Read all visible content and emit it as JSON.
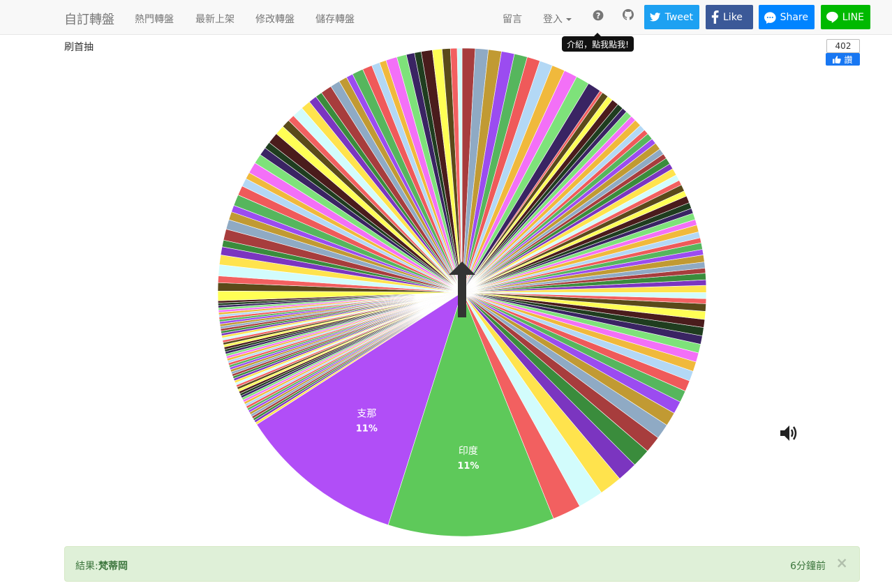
{
  "navbar": {
    "brand": "自訂轉盤",
    "links": [
      "熱門轉盤",
      "最新上架",
      "修改轉盤",
      "儲存轉盤"
    ],
    "message": "留言",
    "login": "登入",
    "help_icon": "question-circle-icon",
    "github_icon": "github-icon",
    "tweet": "Tweet",
    "like": "Like",
    "share": "Share",
    "line": "LINE"
  },
  "tooltip": "介紹，點我點我!",
  "wheel": {
    "title": "刷首抽",
    "pointer_icon": "up-arrow-icon",
    "sound_icon": "speaker-icon"
  },
  "fb": {
    "count": "402",
    "like_label": "讚"
  },
  "chart_data": {
    "type": "pie",
    "labeled_slices": [
      {
        "name": "支那",
        "percent": "11%",
        "color": "#b14ef7"
      },
      {
        "name": "印度",
        "percent": "11%",
        "color": "#5ec95a"
      }
    ],
    "palette": [
      "#f26060",
      "#d2fcfc",
      "#ffe34d",
      "#7b35c0",
      "#3a8c3c",
      "#a73d3d",
      "#8faac4",
      "#c19a33",
      "#9b4cf0",
      "#56b65d",
      "#ef5a5a",
      "#b3d8f5",
      "#f0b93c",
      "#f370f7",
      "#7ee27a",
      "#3a2463",
      "#1f3d1f",
      "#4a1c1c",
      "#ffff55",
      "#5a4a1a"
    ]
  },
  "result": {
    "label": "結果:",
    "value": "梵蒂岡",
    "time": "6分鐘前",
    "close": "×"
  }
}
